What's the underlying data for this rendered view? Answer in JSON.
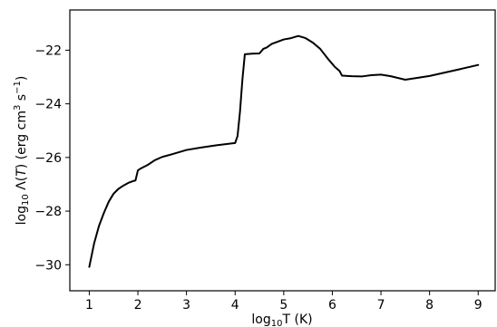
{
  "chart_data": {
    "type": "line",
    "xlabel": "log10T (K)",
    "ylabel": "log10 Λ(T) (erg cm3 s−1)",
    "xlim": [
      0.6,
      9.35
    ],
    "ylim": [
      -30.97,
      -20.5
    ],
    "grid": false,
    "x_ticks": [
      1,
      2,
      3,
      4,
      5,
      6,
      7,
      8,
      9
    ],
    "x_tick_labels": [
      "1",
      "2",
      "3",
      "4",
      "5",
      "6",
      "7",
      "8",
      "9"
    ],
    "y_ticks": [
      -30,
      -28,
      -26,
      -24,
      -22
    ],
    "y_tick_labels": [
      "−30",
      "−28",
      "−26",
      "−24",
      "−22"
    ],
    "series": [
      {
        "x": [
          1.0,
          1.1,
          1.2,
          1.3,
          1.4,
          1.5,
          1.6,
          1.7,
          1.8,
          1.9,
          1.95,
          2.0,
          2.05,
          2.2,
          2.35,
          2.5,
          2.7,
          3.0,
          3.3,
          3.6,
          4.0,
          4.05,
          4.1,
          4.15,
          4.2,
          4.35,
          4.5,
          4.58,
          4.65,
          4.75,
          4.85,
          5.0,
          5.15,
          5.3,
          5.45,
          5.6,
          5.75,
          5.9,
          6.05,
          6.15,
          6.2,
          6.4,
          6.6,
          6.8,
          7.0,
          7.2,
          7.5,
          8.0,
          8.5,
          9.0
        ],
        "y": [
          -30.08,
          -29.2,
          -28.55,
          -28.07,
          -27.65,
          -27.35,
          -27.17,
          -27.05,
          -26.95,
          -26.88,
          -26.86,
          -26.48,
          -26.42,
          -26.28,
          -26.1,
          -25.98,
          -25.88,
          -25.72,
          -25.63,
          -25.55,
          -25.46,
          -25.2,
          -24.3,
          -23.1,
          -22.15,
          -22.13,
          -22.12,
          -21.95,
          -21.9,
          -21.77,
          -21.7,
          -21.6,
          -21.55,
          -21.47,
          -21.55,
          -21.72,
          -21.95,
          -22.3,
          -22.62,
          -22.78,
          -22.95,
          -22.97,
          -22.98,
          -22.93,
          -22.91,
          -22.97,
          -23.1,
          -22.96,
          -22.76,
          -22.55
        ]
      }
    ]
  }
}
